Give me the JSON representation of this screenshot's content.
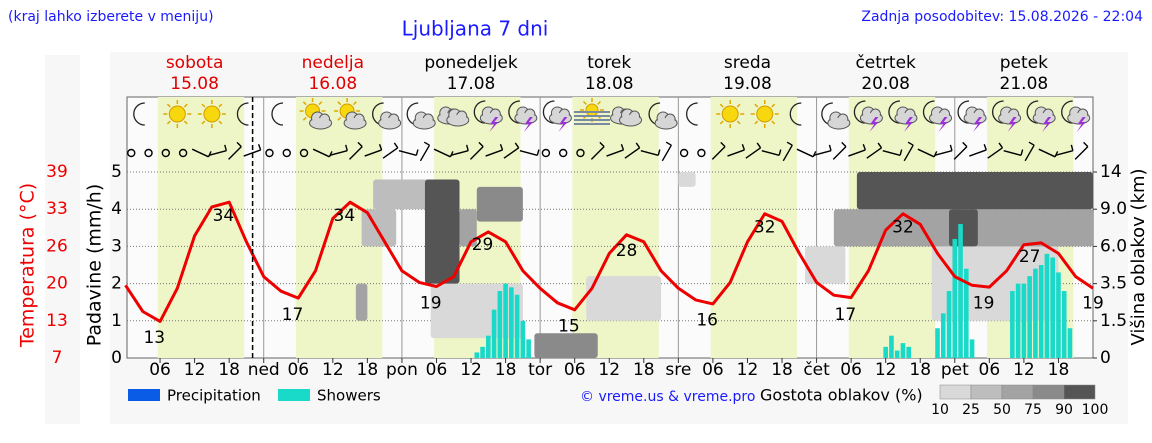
{
  "header": {
    "note": "(kraj lahko izberete v meniju)",
    "title": "Ljubljana 7 dni",
    "updated": "Zadnja posodobitev: 15.08.2026 - 22:04"
  },
  "chart_data": {
    "type": "meteogram",
    "days": [
      {
        "name": "sobota",
        "date": "15.08",
        "color": "#e00000"
      },
      {
        "name": "nedelja",
        "date": "16.08",
        "color": "#e00000"
      },
      {
        "name": "ponedeljek",
        "date": "17.08",
        "color": "#000000"
      },
      {
        "name": "torek",
        "date": "18.08",
        "color": "#000000"
      },
      {
        "name": "sreda",
        "date": "19.08",
        "color": "#000000"
      },
      {
        "name": "četrtek",
        "date": "20.08",
        "color": "#000000"
      },
      {
        "name": "petek",
        "date": "21.08",
        "color": "#000000"
      }
    ],
    "xlim": [
      0,
      168
    ],
    "xticks": [
      {
        "value": 6,
        "label": "06"
      },
      {
        "value": 12,
        "label": "12"
      },
      {
        "value": 18,
        "label": "18"
      },
      {
        "value": 24,
        "label": "ned"
      },
      {
        "value": 30,
        "label": "06"
      },
      {
        "value": 36,
        "label": "12"
      },
      {
        "value": 42,
        "label": "18"
      },
      {
        "value": 48,
        "label": "pon"
      },
      {
        "value": 54,
        "label": "06"
      },
      {
        "value": 60,
        "label": "12"
      },
      {
        "value": 66,
        "label": "18"
      },
      {
        "value": 72,
        "label": "tor"
      },
      {
        "value": 78,
        "label": "06"
      },
      {
        "value": 84,
        "label": "12"
      },
      {
        "value": 90,
        "label": "18"
      },
      {
        "value": 96,
        "label": "sre"
      },
      {
        "value": 102,
        "label": "06"
      },
      {
        "value": 108,
        "label": "12"
      },
      {
        "value": 114,
        "label": "18"
      },
      {
        "value": 120,
        "label": "čet"
      },
      {
        "value": 126,
        "label": "06"
      },
      {
        "value": 132,
        "label": "12"
      },
      {
        "value": 138,
        "label": "18"
      },
      {
        "value": 144,
        "label": "pet"
      },
      {
        "value": 150,
        "label": "06"
      },
      {
        "value": 156,
        "label": "12"
      },
      {
        "value": 162,
        "label": "18"
      }
    ],
    "now": 22.07,
    "temperature": {
      "axis_label": "Temperatura (°C)",
      "color": "#ee0000",
      "ylim": [
        7,
        39
      ],
      "yticks": [
        7,
        {
          "value": 13.4,
          "label": "13"
        },
        {
          "value": 19.8,
          "label": "20"
        },
        {
          "value": 26.2,
          "label": "26"
        },
        {
          "value": 32.6,
          "label": "33"
        },
        39
      ],
      "x": [
        0,
        3,
        6,
        9,
        12,
        15,
        18,
        21,
        24,
        27,
        30,
        33,
        36,
        39,
        42,
        45,
        48,
        51,
        54,
        57,
        60,
        63,
        66,
        69,
        72,
        75,
        78,
        81,
        84,
        87,
        90,
        93,
        96,
        99,
        102,
        105,
        108,
        111,
        114,
        117,
        120,
        123,
        126,
        129,
        132,
        135,
        138,
        141,
        144,
        147,
        150,
        153,
        156,
        159,
        162,
        165,
        168
      ],
      "values": [
        19.5,
        15,
        13.3,
        19,
        28,
        33,
        33.8,
        27,
        21,
        18.5,
        17.3,
        22,
        31,
        33.8,
        32,
        27,
        22,
        20,
        19.3,
        21,
        27,
        28.7,
        27,
        22,
        19,
        16.5,
        15.3,
        19,
        25,
        28.2,
        27,
        22,
        19,
        17,
        16.3,
        20,
        27,
        31.8,
        30.5,
        25,
        20,
        17.8,
        17.4,
        22,
        29,
        31.8,
        30,
        25,
        21,
        19.5,
        19.2,
        22,
        26.5,
        26.8,
        25,
        21,
        19
      ],
      "extremes": [
        {
          "x": 5,
          "value": 13
        },
        {
          "x": 17,
          "value": 34
        },
        {
          "x": 29,
          "value": 17
        },
        {
          "x": 38,
          "value": 34
        },
        {
          "x": 53,
          "value": 19
        },
        {
          "x": 62,
          "value": 29
        },
        {
          "x": 77,
          "value": 15
        },
        {
          "x": 87,
          "value": 28
        },
        {
          "x": 101,
          "value": 16
        },
        {
          "x": 111,
          "value": 32
        },
        {
          "x": 125,
          "value": 17
        },
        {
          "x": 135,
          "value": 32
        },
        {
          "x": 149,
          "value": 19
        },
        {
          "x": 157,
          "value": 27
        },
        {
          "x": 168,
          "value": 19
        }
      ]
    },
    "precipitation": {
      "axis_label": "Padavine (mm/h)",
      "ylim": [
        0,
        5
      ],
      "yticks": [
        0,
        1,
        2,
        3,
        4,
        5
      ],
      "grid": true,
      "x": [
        61,
        62,
        63,
        64,
        65,
        66,
        67,
        68,
        69,
        70,
        132,
        133,
        134,
        135,
        136,
        141,
        142,
        143,
        144,
        145,
        146,
        147,
        154,
        155,
        156,
        157,
        158,
        159,
        160,
        161,
        162,
        163,
        164
      ],
      "series": [
        {
          "name": "Precipitation",
          "color": "#0a5ce6",
          "values": [
            0,
            0,
            0,
            0,
            0,
            0,
            0,
            0,
            0,
            0,
            0,
            0,
            0,
            0,
            0,
            0,
            0,
            0,
            0,
            0,
            0,
            0,
            0,
            0,
            0,
            0,
            0,
            0,
            0,
            0,
            0,
            0,
            0
          ]
        },
        {
          "name": "Showers",
          "color": "#19d9c8",
          "values": [
            0.15,
            0.3,
            0.6,
            1.3,
            1.8,
            2.0,
            1.9,
            1.7,
            1.0,
            0.5,
            0.3,
            0.6,
            0.2,
            0.4,
            0.3,
            0.8,
            1.2,
            1.8,
            3.2,
            3.6,
            2.4,
            0.5,
            1.8,
            2.0,
            2.0,
            2.2,
            2.4,
            2.5,
            2.8,
            2.7,
            2.3,
            1.8,
            0.8
          ]
        }
      ]
    },
    "clouds": {
      "axis_label": "Višina oblakov (km)",
      "y2lim": [
        0,
        14
      ],
      "y2ticks": [
        0,
        1.5,
        3.5,
        {
          "value": 6,
          "label": "6.0"
        },
        {
          "value": 9,
          "label": "9.0"
        },
        14
      ],
      "legend_title": "Gostota oblakov (%)",
      "density_ticks": [
        10,
        25,
        50,
        75,
        90,
        100
      ],
      "density_colors": [
        "#d9d9d9",
        "#bdbdbd",
        "#a3a3a3",
        "#8a8a8a",
        "#555555"
      ],
      "cells": [
        {
          "x": [
            40,
            42
          ],
          "height": [
            1.5,
            3.5
          ],
          "density": 60
        },
        {
          "x": [
            53,
            69
          ],
          "height": [
            0.8,
            3.5
          ],
          "density": 20
        },
        {
          "x": [
            41,
            47
          ],
          "height": [
            6,
            9
          ],
          "density": 40
        },
        {
          "x": [
            43,
            53
          ],
          "height": [
            9,
            13
          ],
          "density": 40
        },
        {
          "x": [
            52,
            58
          ],
          "height": [
            3.5,
            13
          ],
          "density": 95
        },
        {
          "x": [
            58,
            61
          ],
          "height": [
            6,
            9
          ],
          "density": 60
        },
        {
          "x": [
            61,
            69
          ],
          "height": [
            8,
            12
          ],
          "density": 80
        },
        {
          "x": [
            71,
            82
          ],
          "height": [
            0,
            1
          ],
          "density": 80
        },
        {
          "x": [
            80,
            93
          ],
          "height": [
            1.5,
            4
          ],
          "density": 20
        },
        {
          "x": [
            96,
            99
          ],
          "height": [
            12,
            14
          ],
          "density": 20
        },
        {
          "x": [
            118,
            125
          ],
          "height": [
            3.5,
            6
          ],
          "density": 20
        },
        {
          "x": [
            140,
            162
          ],
          "height": [
            1.5,
            6
          ],
          "density": 20
        },
        {
          "x": [
            123,
            168
          ],
          "height": [
            6,
            9
          ],
          "density": 60
        },
        {
          "x": [
            143,
            148
          ],
          "height": [
            6,
            9
          ],
          "density": 95
        },
        {
          "x": [
            127,
            168
          ],
          "height": [
            9,
            14
          ],
          "density": 95
        }
      ]
    }
  },
  "credit": "© vreme.us & vreme.pro"
}
